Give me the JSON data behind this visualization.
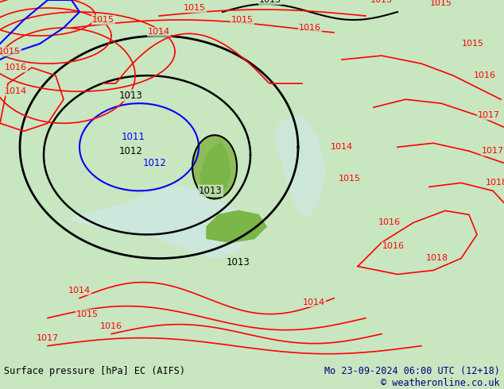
{
  "title_left": "Surface pressure [hPa] EC (AIFS)",
  "title_right": "Mo 23-09-2024 06:00 UTC (12+18)",
  "copyright": "© weatheronline.co.uk",
  "bg_color": "#c8e6c0",
  "bottom_bar_color": "#e8e8e8",
  "text_color_navy": "#000080",
  "text_color_dark": "#1a1a2e",
  "fig_width": 6.34,
  "fig_height": 4.9,
  "dpi": 100
}
